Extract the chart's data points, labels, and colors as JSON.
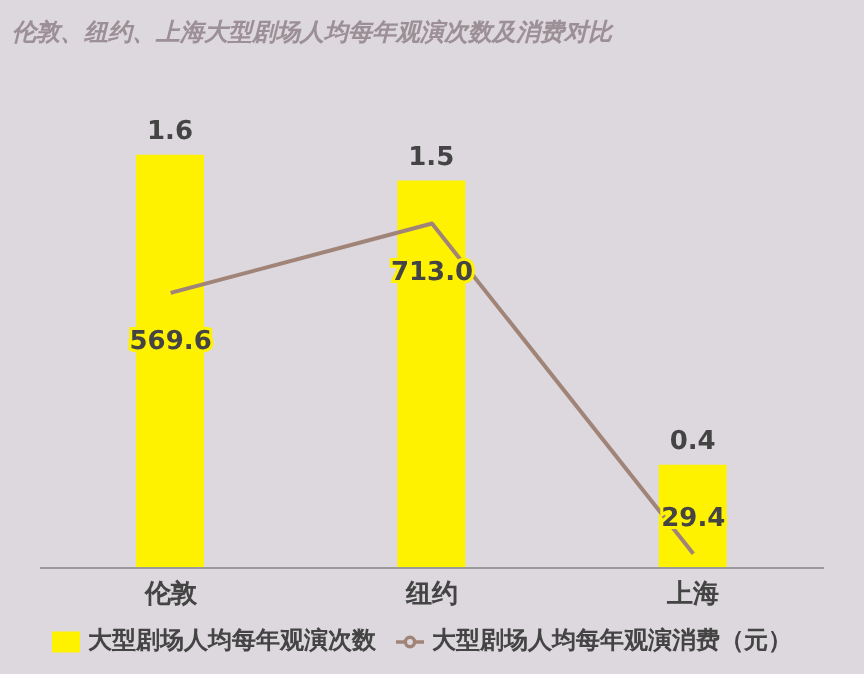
{
  "chart_data": {
    "type": "bar",
    "title": "伦敦、纽约、上海大型剧场人均每年观演次数及消费对比",
    "categories": [
      "伦敦",
      "纽约",
      "上海"
    ],
    "series": [
      {
        "name": "大型剧场人均每年观演次数",
        "color": "#fff200",
        "values": [
          1.6,
          1.5,
          0.4
        ]
      },
      {
        "name": "大型剧场人均每年观演消费（元）",
        "type": "line",
        "axis": "y2",
        "color": "#a08478",
        "values": [
          569.6,
          713.0,
          29.4
        ],
        "value_labels": [
          "569.6",
          "713.0",
          "29.4"
        ]
      }
    ],
    "data_labels": true,
    "legend": "bottom",
    "grid": false,
    "marker": "none",
    "tick_labels": "x"
  }
}
